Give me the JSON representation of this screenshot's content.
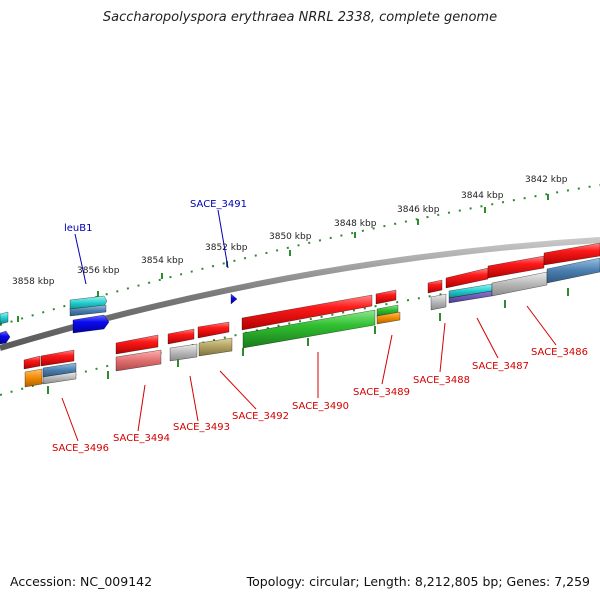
{
  "title": "Saccharopolyspora erythraea NRRL 2338, complete genome",
  "footer": {
    "accession": "Accession: NC_009142",
    "stats": "Topology: circular; Length: 8,212,805 bp; Genes: 7,259"
  },
  "kbp_labels": [
    "3842 kbp",
    "3844 kbp",
    "3846 kbp",
    "3848 kbp",
    "3850 kbp",
    "3852 kbp",
    "3854 kbp",
    "3856 kbp",
    "3858 kbp"
  ],
  "gene_labels": [
    {
      "name": "leuB1",
      "color": "blue"
    },
    {
      "name": "SACE_3491",
      "color": "blue"
    },
    {
      "name": "SACE_3496",
      "color": "red"
    },
    {
      "name": "SACE_3494",
      "color": "red"
    },
    {
      "name": "SACE_3493",
      "color": "red"
    },
    {
      "name": "SACE_3492",
      "color": "red"
    },
    {
      "name": "SACE_3490",
      "color": "red"
    },
    {
      "name": "SACE_3489",
      "color": "red"
    },
    {
      "name": "SACE_3488",
      "color": "red"
    },
    {
      "name": "SACE_3487",
      "color": "red"
    },
    {
      "name": "SACE_3486",
      "color": "red"
    }
  ],
  "colors": {
    "backbone": "#808080",
    "tick": "#2e8b2e",
    "gene_red": "#e00000",
    "gene_green": "#2aa52a",
    "gene_blue": "#0000e0",
    "gene_cyan": "#22cccc",
    "gene_steel": "#4a7fb0",
    "gene_gray": "#b8b8b8",
    "gene_olive": "#b0a060",
    "gene_orange": "#f08a00",
    "gene_pink": "#e07070",
    "label_red": "#d40000",
    "label_blue": "#0000b4"
  }
}
